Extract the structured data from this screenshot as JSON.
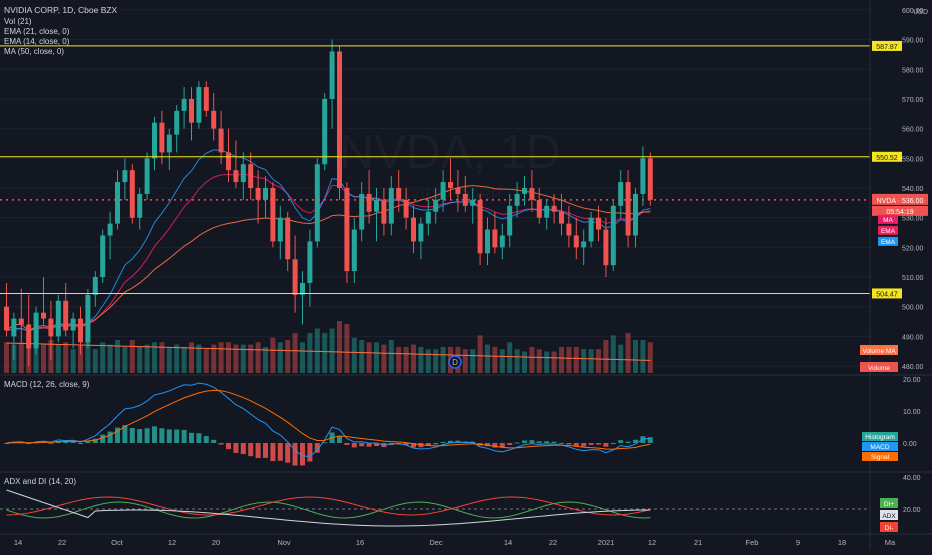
{
  "header": {
    "title": "NVIDIA CORP, 1D, Cboe BZX",
    "currency": "USD"
  },
  "legend": {
    "vol": "Vol (21)",
    "ema21": "EMA (21, close, 0)",
    "ema14": "EMA (14, close, 0)",
    "ma50": "MA (50, close, 0)",
    "macd": "MACD (12, 26, close, 9)",
    "adx": "ADX and DI (14, 20)"
  },
  "watermark": {
    "symbol": "NVDA, 1D",
    "name": "NVIDIA CORP"
  },
  "colors": {
    "background": "#131722",
    "up": "#26a69a",
    "down": "#ef5350",
    "hline": "#f5e51e",
    "price_line": "#ef5350",
    "ema21": "#e91e63",
    "ema14": "#2196f3",
    "ma50": "#ff7043",
    "macd_line": "#2196f3",
    "signal_line": "#ff6d00",
    "di_plus": "#4caf50",
    "di_minus": "#f44336",
    "adx_line": "#cfd8dc",
    "grid": "#1e2230",
    "axis_text": "#b2b5be"
  },
  "price_axis": {
    "ticks": [
      "600.00",
      "590.00",
      "580.00",
      "570.00",
      "560.00",
      "550.00",
      "540.00",
      "530.00",
      "520.00",
      "510.00",
      "500.00",
      "490.00",
      "480.00"
    ],
    "hline_labels": [
      "587.87",
      "550.52",
      "504.47"
    ],
    "current_label": "NVDA · 536.00",
    "countdown": "05:54:19",
    "tags": [
      "MA",
      "EMA",
      "EMA"
    ],
    "volume_tags": [
      "Volume MA",
      "Volume"
    ]
  },
  "macd_axis": {
    "ticks": [
      "20.00",
      "10.00",
      "0.00"
    ],
    "tags": [
      "Histogram",
      "MACD",
      "Signal"
    ]
  },
  "adx_axis": {
    "ticks": [
      "40.00",
      "20.00"
    ],
    "tags": [
      "DI+",
      "ADX",
      "DI-"
    ]
  },
  "time_axis": [
    "14",
    "22",
    "Oct",
    "12",
    "20",
    "Nov",
    "16",
    "Dec",
    "14",
    "22",
    "2021",
    "12",
    "21",
    "Feb",
    "9",
    "18",
    "Ma"
  ],
  "events": {
    "dividend": "D"
  },
  "chart_data": {
    "type": "candlestick",
    "ylim": [
      478,
      602
    ],
    "horizontal_lines": [
      587.87,
      550.52,
      504.47
    ],
    "last_price": 536.0,
    "ohlc": [
      [
        500,
        508,
        490,
        492
      ],
      [
        490,
        498,
        482,
        496
      ],
      [
        496,
        506,
        488,
        494
      ],
      [
        494,
        504,
        480,
        486
      ],
      [
        486,
        500,
        484,
        498
      ],
      [
        498,
        510,
        494,
        496
      ],
      [
        496,
        502,
        482,
        490
      ],
      [
        490,
        504,
        488,
        502
      ],
      [
        502,
        508,
        490,
        492
      ],
      [
        492,
        498,
        486,
        496
      ],
      [
        496,
        500,
        484,
        488
      ],
      [
        488,
        506,
        486,
        504
      ],
      [
        504,
        512,
        500,
        510
      ],
      [
        510,
        526,
        508,
        524
      ],
      [
        524,
        532,
        516,
        528
      ],
      [
        528,
        546,
        526,
        542
      ],
      [
        542,
        550,
        536,
        546
      ],
      [
        546,
        548,
        528,
        530
      ],
      [
        530,
        540,
        526,
        538
      ],
      [
        538,
        552,
        536,
        550
      ],
      [
        550,
        564,
        546,
        562
      ],
      [
        562,
        566,
        548,
        552
      ],
      [
        552,
        560,
        546,
        558
      ],
      [
        558,
        568,
        552,
        566
      ],
      [
        566,
        574,
        560,
        570
      ],
      [
        570,
        574,
        556,
        562
      ],
      [
        562,
        576,
        560,
        574
      ],
      [
        574,
        576,
        564,
        566
      ],
      [
        566,
        572,
        556,
        560
      ],
      [
        560,
        566,
        548,
        552
      ],
      [
        552,
        560,
        542,
        546
      ],
      [
        546,
        556,
        540,
        542
      ],
      [
        542,
        552,
        536,
        548
      ],
      [
        548,
        552,
        536,
        540
      ],
      [
        540,
        546,
        528,
        536
      ],
      [
        536,
        544,
        530,
        540
      ],
      [
        540,
        542,
        520,
        522
      ],
      [
        522,
        534,
        516,
        530
      ],
      [
        530,
        532,
        512,
        516
      ],
      [
        516,
        524,
        498,
        504
      ],
      [
        504,
        512,
        494,
        508
      ],
      [
        508,
        526,
        500,
        522
      ],
      [
        522,
        550,
        520,
        548
      ],
      [
        548,
        572,
        546,
        570
      ],
      [
        570,
        590,
        560,
        586
      ],
      [
        586,
        588,
        536,
        540
      ],
      [
        540,
        542,
        508,
        512
      ],
      [
        512,
        530,
        508,
        526
      ],
      [
        526,
        542,
        522,
        538
      ],
      [
        538,
        546,
        528,
        532
      ],
      [
        532,
        540,
        522,
        536
      ],
      [
        536,
        540,
        524,
        528
      ],
      [
        528,
        544,
        524,
        540
      ],
      [
        540,
        546,
        532,
        536
      ],
      [
        536,
        540,
        526,
        530
      ],
      [
        530,
        534,
        518,
        522
      ],
      [
        522,
        530,
        516,
        528
      ],
      [
        528,
        536,
        524,
        532
      ],
      [
        532,
        540,
        528,
        536
      ],
      [
        536,
        546,
        532,
        542
      ],
      [
        542,
        550,
        536,
        540
      ],
      [
        540,
        546,
        532,
        538
      ],
      [
        538,
        544,
        532,
        534
      ],
      [
        534,
        540,
        528,
        536
      ],
      [
        536,
        538,
        514,
        518
      ],
      [
        518,
        530,
        514,
        526
      ],
      [
        526,
        532,
        518,
        520
      ],
      [
        520,
        528,
        516,
        524
      ],
      [
        524,
        538,
        520,
        534
      ],
      [
        534,
        542,
        530,
        538
      ],
      [
        538,
        544,
        534,
        540
      ],
      [
        540,
        546,
        532,
        536
      ],
      [
        536,
        540,
        528,
        530
      ],
      [
        530,
        536,
        526,
        534
      ],
      [
        534,
        538,
        528,
        532
      ],
      [
        532,
        538,
        524,
        528
      ],
      [
        528,
        534,
        520,
        524
      ],
      [
        524,
        530,
        516,
        520
      ],
      [
        520,
        526,
        514,
        522
      ],
      [
        522,
        532,
        520,
        530
      ],
      [
        530,
        534,
        522,
        526
      ],
      [
        526,
        530,
        510,
        514
      ],
      [
        514,
        536,
        512,
        534
      ],
      [
        534,
        546,
        530,
        542
      ],
      [
        542,
        546,
        520,
        524
      ],
      [
        524,
        540,
        520,
        538
      ],
      [
        538,
        554,
        534,
        550
      ],
      [
        550,
        552,
        534,
        536
      ]
    ]
  }
}
